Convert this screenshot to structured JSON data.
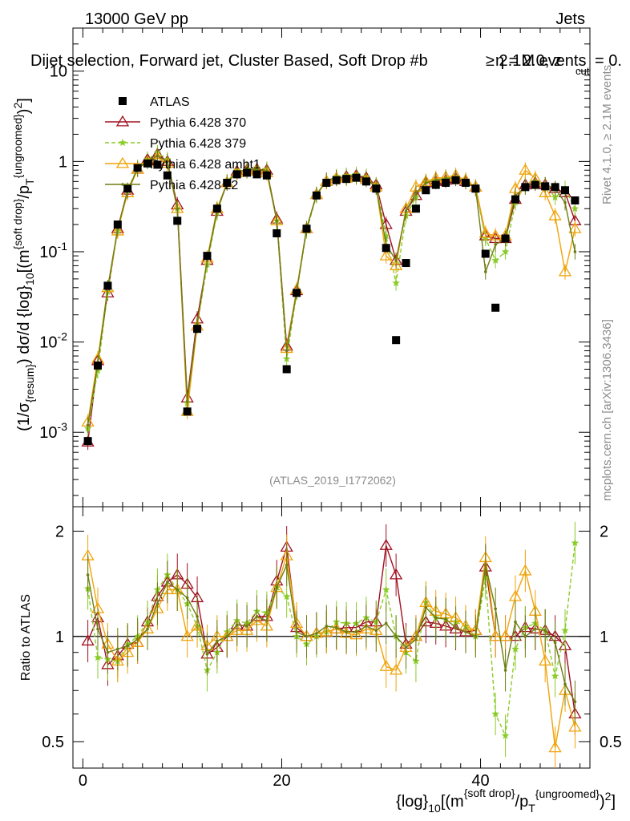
{
  "header": {
    "energy": "13000 GeV pp",
    "category": "Jets",
    "analysis_title": "Dijet selection, Forward jet, Cluster Based, Soft Drop #b",
    "params_eta": "η = 2.0, z",
    "params_cut_sub": "cut",
    "params_tail": " = 0.",
    "events_overlap": "≥ 2.1M events",
    "analysis_id": "(ATLAS_2019_I1772062)",
    "rivet_version": "Rivet 4.1.0, ≥ 2.1M events",
    "site": "mcplots.cern.ch [arXiv:1306.3436]"
  },
  "axes": {
    "ratio_ylabel": "Ratio to ATLAS",
    "main_ylabel_parts": [
      "(1/σ",
      "{resum}",
      ") dσ/d {log}",
      "10",
      "[(m",
      "{soft drop}",
      "/p",
      "T",
      "{ungroomed}",
      ")",
      "2",
      "]"
    ],
    "xlabel_parts": [
      "{log}",
      "10",
      "[(m",
      "{soft drop}",
      "/p",
      "T",
      "{ungroomed}",
      ")",
      "2",
      "]"
    ]
  },
  "colors": {
    "atlas": "#000000",
    "p370": "#a01020",
    "p379": "#8acc28",
    "ambt1": "#f0a30a",
    "z2": "#6e7d12"
  },
  "chart_data": {
    "type": "scatter",
    "title": "Dijet selection, Forward jet, Cluster Based, Soft Drop",
    "xlim": [
      -1,
      51
    ],
    "x_ticks": [
      0,
      20,
      40
    ],
    "main_panel": {
      "yscale": "log",
      "ylim": [
        0.00015,
        30
      ],
      "y_ticks": [
        {
          "v": 0.001,
          "t": "10",
          "e": "-3"
        },
        {
          "v": 0.01,
          "t": "10",
          "e": "-2"
        },
        {
          "v": 0.1,
          "t": "10",
          "e": "-1"
        },
        {
          "v": 1,
          "t": "1",
          "e": ""
        },
        {
          "v": 10,
          "t": "10",
          "e": ""
        }
      ]
    },
    "ratio_panel": {
      "yscale": "log",
      "ylim": [
        0.42,
        2.35
      ],
      "y_ticks": [
        0.5,
        1,
        2
      ],
      "reference_line": 1
    },
    "x": [
      0.5,
      1.5,
      2.5,
      3.5,
      4.5,
      5.5,
      6.5,
      7.5,
      8.5,
      9.5,
      10.5,
      11.5,
      12.5,
      13.5,
      14.5,
      15.5,
      16.5,
      17.5,
      18.5,
      19.5,
      20.5,
      21.5,
      22.5,
      23.5,
      24.5,
      25.5,
      26.5,
      27.5,
      28.5,
      29.5,
      30.5,
      31.5,
      32.5,
      33.5,
      34.5,
      35.5,
      36.5,
      37.5,
      38.5,
      39.5,
      40.5,
      41.5,
      42.5,
      43.5,
      44.5,
      45.5,
      46.5,
      47.5,
      48.5,
      49.5
    ],
    "series": [
      {
        "name": "ATLAS",
        "key": "atlas",
        "marker": "square",
        "values": [
          0.0008,
          0.0055,
          0.042,
          0.2,
          0.5,
          0.85,
          0.95,
          0.92,
          0.7,
          0.22,
          0.0017,
          0.014,
          0.09,
          0.3,
          0.58,
          0.72,
          0.75,
          0.72,
          0.7,
          0.16,
          0.005,
          0.035,
          0.18,
          0.42,
          0.58,
          0.62,
          0.64,
          0.66,
          0.6,
          0.5,
          0.11,
          0.0105,
          0.075,
          0.3,
          0.48,
          0.55,
          0.58,
          0.62,
          0.58,
          0.5,
          0.095,
          0.024,
          0.14,
          0.38,
          0.52,
          0.55,
          0.53,
          0.52,
          0.48,
          0.37
        ]
      },
      {
        "name": "Pythia 6.428 370",
        "key": "p370",
        "marker": "triangle",
        "values": [
          0.00078,
          0.0062,
          0.035,
          0.18,
          0.48,
          0.82,
          1.05,
          1.2,
          1.0,
          0.33,
          0.0024,
          0.018,
          0.08,
          0.28,
          0.58,
          0.78,
          0.8,
          0.82,
          0.8,
          0.23,
          0.009,
          0.037,
          0.18,
          0.43,
          0.6,
          0.65,
          0.68,
          0.7,
          0.66,
          0.55,
          0.2,
          0.08,
          0.28,
          0.42,
          0.58,
          0.6,
          0.62,
          0.65,
          0.6,
          0.52,
          0.15,
          0.14,
          0.14,
          0.38,
          0.55,
          0.58,
          0.55,
          0.5,
          0.45,
          0.22
        ],
        "ratio": [
          0.97,
          1.13,
          0.83,
          0.88,
          0.95,
          0.96,
          1.1,
          1.3,
          1.43,
          1.5,
          1.41,
          1.29,
          0.89,
          0.93,
          1.0,
          1.08,
          1.07,
          1.14,
          1.14,
          1.44,
          1.8,
          1.06,
          1.0,
          1.02,
          1.03,
          1.05,
          1.06,
          1.06,
          1.1,
          1.1,
          1.82,
          1.5,
          0.95,
          1.0,
          1.1,
          1.09,
          1.07,
          1.05,
          1.03,
          1.04,
          1.58,
          1.0,
          1.0,
          1.0,
          1.06,
          1.05,
          1.04,
          1.0,
          0.94,
          0.6
        ]
      },
      {
        "name": "Pythia 6.428 379",
        "key": "p379",
        "marker": "star",
        "dashed": true,
        "values": [
          0.0011,
          0.0048,
          0.036,
          0.17,
          0.48,
          0.86,
          1.05,
          1.25,
          1.05,
          0.3,
          0.0021,
          0.015,
          0.072,
          0.27,
          0.6,
          0.8,
          0.82,
          0.85,
          0.82,
          0.22,
          0.0065,
          0.035,
          0.17,
          0.42,
          0.6,
          0.68,
          0.7,
          0.72,
          0.68,
          0.55,
          0.15,
          0.045,
          0.25,
          0.4,
          0.6,
          0.62,
          0.65,
          0.68,
          0.62,
          0.5,
          0.14,
          0.08,
          0.1,
          0.35,
          0.55,
          0.6,
          0.55,
          0.4,
          0.5,
          0.3
        ],
        "ratio": [
          1.37,
          0.87,
          0.86,
          0.85,
          0.95,
          1.0,
          1.1,
          1.36,
          1.5,
          1.36,
          1.24,
          1.07,
          0.8,
          0.9,
          1.03,
          1.11,
          1.09,
          1.18,
          1.17,
          1.38,
          1.3,
          1.0,
          0.95,
          1.0,
          1.03,
          1.1,
          1.09,
          1.09,
          1.13,
          1.1,
          1.36,
          1.0,
          0.9,
          0.85,
          1.25,
          1.13,
          1.12,
          1.1,
          1.07,
          1.0,
          1.47,
          0.6,
          0.52,
          0.92,
          1.06,
          1.09,
          1.04,
          0.77,
          1.04,
          1.85
        ]
      },
      {
        "name": "Pythia 6.428 ambt1",
        "key": "ambt1",
        "marker": "triangle-open",
        "values": [
          0.0013,
          0.0065,
          0.04,
          0.17,
          0.45,
          0.82,
          1.0,
          1.1,
          0.95,
          0.3,
          0.0017,
          0.015,
          0.085,
          0.3,
          0.58,
          0.75,
          0.78,
          0.8,
          0.75,
          0.22,
          0.0085,
          0.038,
          0.18,
          0.43,
          0.6,
          0.65,
          0.65,
          0.67,
          0.63,
          0.52,
          0.09,
          0.07,
          0.3,
          0.52,
          0.6,
          0.65,
          0.67,
          0.7,
          0.62,
          0.52,
          0.16,
          0.15,
          0.15,
          0.5,
          0.8,
          0.65,
          0.45,
          0.25,
          0.06,
          0.18
        ],
        "ratio": [
          1.7,
          1.2,
          0.95,
          0.85,
          0.9,
          0.96,
          1.05,
          1.2,
          1.36,
          1.36,
          1.0,
          1.07,
          0.94,
          1.0,
          1.0,
          1.04,
          1.04,
          1.11,
          1.07,
          1.38,
          1.7,
          1.09,
          1.0,
          1.02,
          1.03,
          1.05,
          1.02,
          1.01,
          1.05,
          1.04,
          0.82,
          0.8,
          0.93,
          1.0,
          1.25,
          1.18,
          1.16,
          1.13,
          1.07,
          1.04,
          1.68,
          1.0,
          1.0,
          1.3,
          1.54,
          1.18,
          0.85,
          0.48,
          0.7,
          0.55
        ]
      },
      {
        "name": "Pythia 6.428 z2",
        "key": "z2",
        "marker": "dot",
        "values": [
          0.0012,
          0.0058,
          0.04,
          0.18,
          0.47,
          0.83,
          1.0,
          1.15,
          1.0,
          0.3,
          0.0022,
          0.016,
          0.08,
          0.29,
          0.58,
          0.78,
          0.8,
          0.82,
          0.78,
          0.22,
          0.008,
          0.036,
          0.18,
          0.43,
          0.62,
          0.66,
          0.66,
          0.68,
          0.64,
          0.52,
          0.12,
          0.08,
          0.28,
          0.45,
          0.58,
          0.62,
          0.65,
          0.66,
          0.6,
          0.5,
          0.06,
          0.12,
          0.14,
          0.42,
          0.52,
          0.58,
          0.55,
          0.5,
          0.35,
          0.1
        ],
        "ratio": [
          1.5,
          1.05,
          0.9,
          0.92,
          0.94,
          0.98,
          1.05,
          1.24,
          1.43,
          1.36,
          1.29,
          1.14,
          0.89,
          0.97,
          1.0,
          1.08,
          1.07,
          1.14,
          1.11,
          1.38,
          1.6,
          1.03,
          1.0,
          1.02,
          1.07,
          1.06,
          1.03,
          1.03,
          1.07,
          1.04,
          1.09,
          1.0,
          0.93,
          0.98,
          1.21,
          1.13,
          1.12,
          1.06,
          1.03,
          1.0,
          1.6,
          1.2,
          0.8,
          1.1,
          1.0,
          1.05,
          1.04,
          0.96,
          0.73,
          0.65
        ]
      }
    ]
  }
}
